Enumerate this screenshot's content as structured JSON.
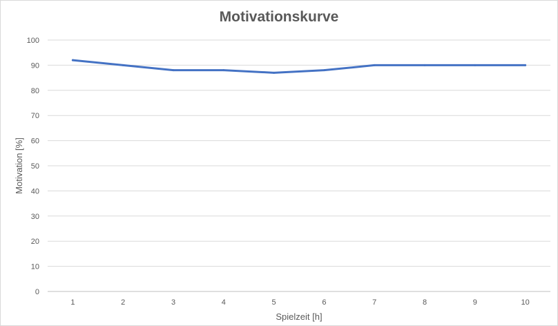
{
  "chart_data": {
    "type": "line",
    "title": "Motivationskurve",
    "xlabel": "Spielzeit [h]",
    "ylabel": "Motivation [%]",
    "categories": [
      "1",
      "2",
      "3",
      "4",
      "5",
      "6",
      "7",
      "8",
      "9",
      "10"
    ],
    "series": [
      {
        "values": [
          92,
          90,
          88,
          88,
          87,
          88,
          90,
          90,
          90,
          90
        ],
        "color": "#4472c4"
      }
    ],
    "ylim": [
      0,
      100
    ],
    "yticks": [
      0,
      10,
      20,
      30,
      40,
      50,
      60,
      70,
      80,
      90,
      100
    ],
    "grid": true,
    "legend": "none"
  }
}
